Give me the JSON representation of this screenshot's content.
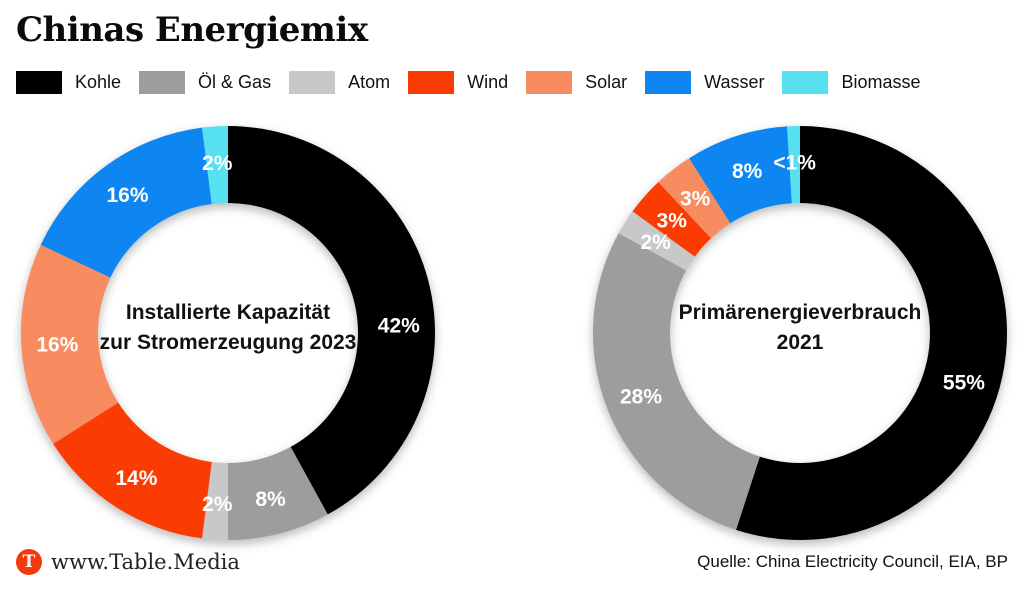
{
  "title": "Chinas Energiemix",
  "legend": {
    "items": [
      {
        "key": "kohle",
        "label": "Kohle",
        "color": "#000000"
      },
      {
        "key": "oel-gas",
        "label": "Öl & Gas",
        "color": "#9d9d9d"
      },
      {
        "key": "atom",
        "label": "Atom",
        "color": "#c8c8c8"
      },
      {
        "key": "wind",
        "label": "Wind",
        "color": "#fa3b02"
      },
      {
        "key": "solar",
        "label": "Solar",
        "color": "#f98b61"
      },
      {
        "key": "wasser",
        "label": "Wasser",
        "color": "#0e86f1"
      },
      {
        "key": "biomasse",
        "label": "Biomasse",
        "color": "#56e0f0"
      }
    ]
  },
  "chart_data": [
    {
      "type": "pie",
      "subtype": "donut",
      "title": "Installierte Kapazität zur Stromerzeugung 2023",
      "center_label": [
        "Installierte Kapazität",
        "zur Stromerzeugung 2023"
      ],
      "keys": [
        "kohle",
        "oel-gas",
        "atom",
        "wind",
        "solar",
        "wasser",
        "biomasse"
      ],
      "categories": [
        "Kohle",
        "Öl & Gas",
        "Atom",
        "Wind",
        "Solar",
        "Wasser",
        "Biomasse"
      ],
      "values": [
        42,
        8,
        2,
        14,
        16,
        16,
        2
      ],
      "labels": [
        "42%",
        "8%",
        "2%",
        "14%",
        "16%",
        "16%",
        "2%"
      ],
      "colors": [
        "#000000",
        "#9d9d9d",
        "#c8c8c8",
        "#fa3b02",
        "#f98b61",
        "#0e86f1",
        "#56e0f0"
      ],
      "label_pos": [
        0.2425,
        null,
        null,
        null,
        null,
        null,
        null
      ],
      "start": "top",
      "direction": "clockwise"
    },
    {
      "type": "pie",
      "subtype": "donut",
      "title": "Primärenergieverbrauch 2021",
      "center_label": [
        "Primärenergieverbrauch",
        "2021"
      ],
      "keys": [
        "kohle",
        "oel-gas",
        "atom",
        "wind",
        "solar",
        "wasser",
        "biomasse"
      ],
      "categories": [
        "Kohle",
        "Öl & Gas",
        "Atom",
        "Wind",
        "Solar",
        "Wasser",
        "Biomasse"
      ],
      "values": [
        55,
        28,
        2,
        3,
        3,
        8,
        1
      ],
      "labels": [
        "55%",
        "28%",
        "2%",
        "3%",
        "3%",
        "8%",
        "<1%"
      ],
      "colors": [
        "#000000",
        "#9d9d9d",
        "#c8c8c8",
        "#fa3b02",
        "#f98b61",
        "#0e86f1",
        "#56e0f0"
      ],
      "label_pos": [
        0.296,
        null,
        null,
        null,
        null,
        null,
        null
      ],
      "start": "top",
      "direction": "clockwise"
    }
  ],
  "footer": {
    "logo_glyph": "T",
    "brand": "www.Table.Media",
    "source": "Quelle: China Electricity Council, EIA, BP"
  }
}
